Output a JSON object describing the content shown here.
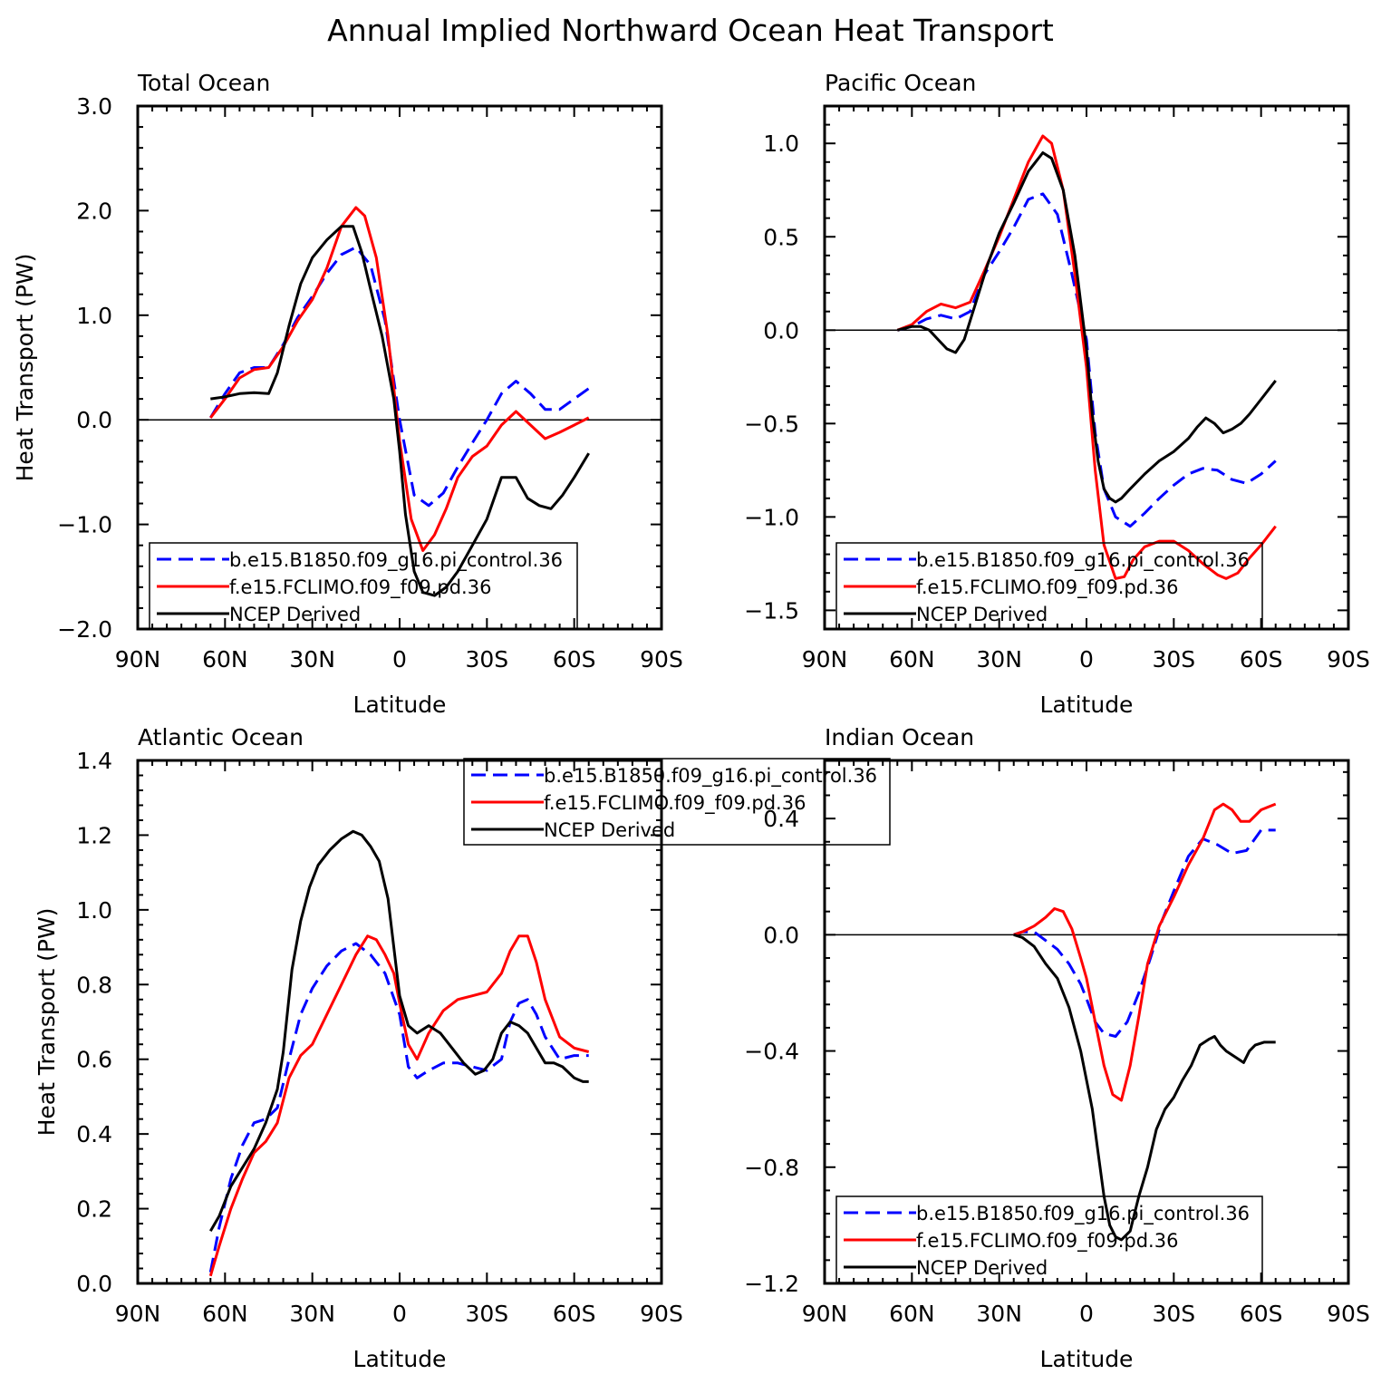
{
  "figure_title": "Annual Implied Northward Ocean Heat Transport",
  "colors": {
    "model_b": "#0000ff",
    "model_f": "#ff0000",
    "ncep": "#000000"
  },
  "chart_data": [
    {
      "type": "line",
      "title": "Total Ocean",
      "xlabel": "Latitude",
      "ylabel": "Heat Transport (PW)",
      "xlim": [
        -90,
        90
      ],
      "ylim": [
        -2.0,
        3.0
      ],
      "xticks": [
        -90,
        -60,
        -30,
        0,
        30,
        60,
        90
      ],
      "xticklabels": [
        "90N",
        "60N",
        "30N",
        "0",
        "30S",
        "60S",
        "90S"
      ],
      "yticks": [
        -2.0,
        -1.0,
        0.0,
        1.0,
        2.0,
        3.0
      ],
      "yticklabels": [
        "−2.0",
        "−1.0",
        "0.0",
        "1.0",
        "2.0",
        "3.0"
      ],
      "zero_line": true,
      "legend_position": "bottom-left",
      "series": [
        {
          "name": "b.e15.B1850.f09_g16.pi_control.36",
          "style": "dashed",
          "color": "#0000ff",
          "x": [
            -65,
            -60,
            -55,
            -50,
            -45,
            -40,
            -35,
            -30,
            -25,
            -20,
            -15,
            -10,
            -5,
            0,
            5,
            10,
            15,
            20,
            25,
            30,
            35,
            40,
            45,
            50,
            55,
            60,
            65
          ],
          "y": [
            0.02,
            0.25,
            0.45,
            0.5,
            0.5,
            0.72,
            0.98,
            1.18,
            1.4,
            1.58,
            1.65,
            1.48,
            0.95,
            0.0,
            -0.72,
            -0.82,
            -0.7,
            -0.45,
            -0.22,
            0.0,
            0.25,
            0.37,
            0.25,
            0.1,
            0.1,
            0.2,
            0.3
          ]
        },
        {
          "name": "f.e15.FCLIMO.f09_f09.pd.36",
          "style": "solid",
          "color": "#ff0000",
          "x": [
            -65,
            -60,
            -55,
            -50,
            -45,
            -40,
            -35,
            -30,
            -25,
            -20,
            -15,
            -12,
            -8,
            -4,
            0,
            4,
            8,
            12,
            16,
            20,
            25,
            30,
            35,
            40,
            45,
            50,
            55,
            60,
            65
          ],
          "y": [
            0.02,
            0.2,
            0.4,
            0.48,
            0.5,
            0.7,
            0.95,
            1.15,
            1.45,
            1.85,
            2.03,
            1.95,
            1.55,
            0.8,
            -0.2,
            -0.95,
            -1.25,
            -1.1,
            -0.85,
            -0.55,
            -0.35,
            -0.25,
            -0.05,
            0.08,
            -0.05,
            -0.18,
            -0.12,
            -0.05,
            0.02
          ]
        },
        {
          "name": "NCEP Derived",
          "style": "solid",
          "color": "#000000",
          "x": [
            -65,
            -60,
            -55,
            -50,
            -45,
            -42,
            -38,
            -34,
            -30,
            -25,
            -20,
            -16,
            -13,
            -10,
            -6,
            -2,
            0,
            2,
            5,
            8,
            12,
            16,
            20,
            25,
            30,
            35,
            40,
            44,
            48,
            52,
            56,
            60,
            65
          ],
          "y": [
            0.2,
            0.22,
            0.25,
            0.26,
            0.25,
            0.45,
            0.9,
            1.3,
            1.55,
            1.72,
            1.85,
            1.85,
            1.6,
            1.25,
            0.8,
            0.2,
            -0.3,
            -0.9,
            -1.45,
            -1.65,
            -1.68,
            -1.6,
            -1.45,
            -1.2,
            -0.95,
            -0.55,
            -0.55,
            -0.75,
            -0.82,
            -0.85,
            -0.72,
            -0.55,
            -0.32
          ]
        }
      ]
    },
    {
      "type": "line",
      "title": "Pacific Ocean",
      "xlabel": "Latitude",
      "ylabel": "",
      "xlim": [
        -90,
        90
      ],
      "ylim": [
        -1.6,
        1.2
      ],
      "xticks": [
        -90,
        -60,
        -30,
        0,
        30,
        60,
        90
      ],
      "xticklabels": [
        "90N",
        "60N",
        "30N",
        "0",
        "30S",
        "60S",
        "90S"
      ],
      "yticks": [
        -1.5,
        -1.0,
        -0.5,
        0.0,
        0.5,
        1.0
      ],
      "yticklabels": [
        "−1.5",
        "−1.0",
        "−0.5",
        "0.0",
        "0.5",
        "1.0"
      ],
      "zero_line": true,
      "legend_position": "bottom-left",
      "series": [
        {
          "name": "b.e15.B1850.f09_g16.pi_control.36",
          "style": "dashed",
          "color": "#0000ff",
          "x": [
            -65,
            -60,
            -55,
            -50,
            -45,
            -40,
            -35,
            -30,
            -25,
            -20,
            -15,
            -10,
            -5,
            0,
            3,
            6,
            10,
            15,
            20,
            25,
            30,
            35,
            40,
            45,
            50,
            55,
            60,
            65
          ],
          "y": [
            0.0,
            0.02,
            0.06,
            0.08,
            0.06,
            0.1,
            0.3,
            0.42,
            0.55,
            0.7,
            0.73,
            0.62,
            0.3,
            -0.05,
            -0.55,
            -0.85,
            -1.0,
            -1.05,
            -0.98,
            -0.9,
            -0.83,
            -0.77,
            -0.74,
            -0.75,
            -0.8,
            -0.82,
            -0.77,
            -0.7
          ]
        },
        {
          "name": "f.e15.FCLIMO.f09_f09.pd.36",
          "style": "solid",
          "color": "#ff0000",
          "x": [
            -65,
            -60,
            -55,
            -50,
            -45,
            -40,
            -35,
            -30,
            -25,
            -20,
            -15,
            -12,
            -8,
            -4,
            0,
            3,
            6,
            10,
            13,
            16,
            20,
            25,
            30,
            35,
            40,
            45,
            48,
            52,
            56,
            60,
            65
          ],
          "y": [
            0.0,
            0.03,
            0.1,
            0.14,
            0.12,
            0.15,
            0.32,
            0.5,
            0.7,
            0.9,
            1.04,
            1.0,
            0.75,
            0.3,
            -0.2,
            -0.75,
            -1.15,
            -1.33,
            -1.32,
            -1.23,
            -1.16,
            -1.13,
            -1.13,
            -1.18,
            -1.25,
            -1.31,
            -1.33,
            -1.3,
            -1.22,
            -1.15,
            -1.05
          ]
        },
        {
          "name": "NCEP Derived",
          "style": "solid",
          "color": "#000000",
          "x": [
            -65,
            -60,
            -57,
            -54,
            -51,
            -48,
            -45,
            -42,
            -38,
            -34,
            -30,
            -25,
            -20,
            -15,
            -12,
            -8,
            -4,
            0,
            2,
            4,
            6,
            8,
            10,
            12,
            15,
            20,
            25,
            30,
            35,
            38,
            41,
            44,
            47,
            50,
            53,
            56,
            60,
            65
          ],
          "y": [
            0.0,
            0.02,
            0.02,
            0.0,
            -0.05,
            -0.1,
            -0.12,
            -0.05,
            0.15,
            0.35,
            0.52,
            0.68,
            0.85,
            0.95,
            0.92,
            0.75,
            0.4,
            -0.1,
            -0.45,
            -0.7,
            -0.85,
            -0.9,
            -0.92,
            -0.9,
            -0.85,
            -0.77,
            -0.7,
            -0.65,
            -0.58,
            -0.52,
            -0.47,
            -0.5,
            -0.55,
            -0.53,
            -0.5,
            -0.45,
            -0.37,
            -0.27
          ]
        }
      ]
    },
    {
      "type": "line",
      "title": "Atlantic Ocean",
      "xlabel": "Latitude",
      "ylabel": "Heat Transport (PW)",
      "xlim": [
        -90,
        90
      ],
      "ylim": [
        0.0,
        1.4
      ],
      "xticks": [
        -90,
        -60,
        -30,
        0,
        30,
        60,
        90
      ],
      "xticklabels": [
        "90N",
        "60N",
        "30N",
        "0",
        "30S",
        "60S",
        "90S"
      ],
      "yticks": [
        0.0,
        0.2,
        0.4,
        0.6,
        0.8,
        1.0,
        1.2,
        1.4
      ],
      "yticklabels": [
        "0.0",
        "0.2",
        "0.4",
        "0.6",
        "0.8",
        "1.0",
        "1.2",
        "1.4"
      ],
      "zero_line": false,
      "legend_position": "top-center",
      "series": [
        {
          "name": "b.e15.B1850.f09_g16.pi_control.36",
          "style": "dashed",
          "color": "#0000ff",
          "x": [
            -65,
            -62,
            -58,
            -54,
            -50,
            -46,
            -42,
            -38,
            -34,
            -30,
            -25,
            -20,
            -15,
            -10,
            -5,
            0,
            3,
            6,
            10,
            15,
            20,
            25,
            30,
            35,
            38,
            41,
            44,
            47,
            50,
            55,
            60,
            65
          ],
          "y": [
            0.03,
            0.15,
            0.28,
            0.37,
            0.43,
            0.44,
            0.47,
            0.6,
            0.72,
            0.79,
            0.85,
            0.89,
            0.91,
            0.88,
            0.83,
            0.72,
            0.58,
            0.55,
            0.57,
            0.59,
            0.59,
            0.58,
            0.57,
            0.6,
            0.7,
            0.75,
            0.76,
            0.72,
            0.66,
            0.6,
            0.61,
            0.61
          ]
        },
        {
          "name": "f.e15.FCLIMO.f09_f09.pd.36",
          "style": "solid",
          "color": "#ff0000",
          "x": [
            -65,
            -62,
            -58,
            -54,
            -50,
            -46,
            -42,
            -38,
            -34,
            -30,
            -25,
            -20,
            -15,
            -11,
            -8,
            -5,
            -2,
            0,
            3,
            6,
            10,
            15,
            20,
            25,
            30,
            35,
            38,
            41,
            44,
            47,
            50,
            55,
            60,
            65
          ],
          "y": [
            0.02,
            0.1,
            0.2,
            0.28,
            0.35,
            0.38,
            0.43,
            0.55,
            0.61,
            0.64,
            0.72,
            0.8,
            0.88,
            0.93,
            0.92,
            0.88,
            0.83,
            0.75,
            0.64,
            0.6,
            0.67,
            0.73,
            0.76,
            0.77,
            0.78,
            0.83,
            0.89,
            0.93,
            0.93,
            0.86,
            0.76,
            0.66,
            0.63,
            0.62
          ]
        },
        {
          "name": "NCEP Derived",
          "style": "solid",
          "color": "#000000",
          "x": [
            -65,
            -62,
            -58,
            -54,
            -50,
            -46,
            -42,
            -40,
            -37,
            -34,
            -31,
            -28,
            -24,
            -20,
            -16,
            -13,
            -10,
            -7,
            -4,
            0,
            3,
            6,
            10,
            14,
            18,
            22,
            26,
            29,
            32,
            35,
            38,
            41,
            44,
            47,
            50,
            53,
            56,
            60,
            63,
            65
          ],
          "y": [
            0.14,
            0.18,
            0.26,
            0.31,
            0.36,
            0.43,
            0.52,
            0.62,
            0.84,
            0.97,
            1.06,
            1.12,
            1.16,
            1.19,
            1.21,
            1.2,
            1.17,
            1.13,
            1.03,
            0.77,
            0.69,
            0.67,
            0.69,
            0.67,
            0.63,
            0.59,
            0.56,
            0.57,
            0.6,
            0.67,
            0.7,
            0.69,
            0.67,
            0.63,
            0.59,
            0.59,
            0.58,
            0.55,
            0.54,
            0.54
          ]
        }
      ]
    },
    {
      "type": "line",
      "title": "Indian Ocean",
      "xlabel": "Latitude",
      "ylabel": "",
      "xlim": [
        -90,
        90
      ],
      "ylim": [
        -1.2,
        0.6
      ],
      "xticks": [
        -90,
        -60,
        -30,
        0,
        30,
        60,
        90
      ],
      "xticklabels": [
        "90N",
        "60N",
        "30N",
        "0",
        "30S",
        "60S",
        "90S"
      ],
      "yticks": [
        -1.2,
        -0.8,
        -0.4,
        0.0,
        0.4
      ],
      "yticklabels": [
        "−1.2",
        "−0.8",
        "−0.4",
        "0.0",
        "0.4"
      ],
      "zero_line": true,
      "legend_position": "bottom-left",
      "series": [
        {
          "name": "b.e15.B1850.f09_g16.pi_control.36",
          "style": "dashed",
          "color": "#0000ff",
          "x": [
            -25,
            -22,
            -18,
            -14,
            -10,
            -6,
            -2,
            0,
            3,
            6,
            10,
            14,
            18,
            22,
            26,
            30,
            35,
            40,
            45,
            50,
            55,
            60,
            65
          ],
          "y": [
            0.0,
            0.01,
            0.01,
            -0.02,
            -0.05,
            -0.1,
            -0.17,
            -0.22,
            -0.3,
            -0.34,
            -0.35,
            -0.3,
            -0.2,
            -0.08,
            0.05,
            0.15,
            0.27,
            0.33,
            0.31,
            0.28,
            0.29,
            0.36,
            0.36
          ]
        },
        {
          "name": "f.e15.FCLIMO.f09_f09.pd.36",
          "style": "solid",
          "color": "#ff0000",
          "x": [
            -25,
            -22,
            -18,
            -14,
            -11,
            -8,
            -5,
            -2,
            0,
            3,
            6,
            9,
            12,
            15,
            18,
            21,
            25,
            30,
            35,
            40,
            44,
            47,
            50,
            53,
            56,
            60,
            65
          ],
          "y": [
            0.0,
            0.01,
            0.03,
            0.06,
            0.09,
            0.08,
            0.02,
            -0.08,
            -0.15,
            -0.3,
            -0.45,
            -0.55,
            -0.57,
            -0.45,
            -0.28,
            -0.1,
            0.03,
            0.13,
            0.24,
            0.33,
            0.43,
            0.45,
            0.43,
            0.39,
            0.39,
            0.43,
            0.45
          ]
        },
        {
          "name": "NCEP Derived",
          "style": "solid",
          "color": "#000000",
          "x": [
            -25,
            -22,
            -18,
            -14,
            -10,
            -6,
            -2,
            0,
            2,
            4,
            6,
            8,
            10,
            12,
            15,
            18,
            21,
            24,
            27,
            30,
            33,
            36,
            39,
            42,
            44,
            46,
            48,
            51,
            54,
            56,
            58,
            61,
            65
          ],
          "y": [
            0.0,
            -0.01,
            -0.04,
            -0.1,
            -0.15,
            -0.25,
            -0.4,
            -0.5,
            -0.6,
            -0.75,
            -0.9,
            -1.0,
            -1.04,
            -1.05,
            -1.02,
            -0.9,
            -0.8,
            -0.67,
            -0.6,
            -0.56,
            -0.5,
            -0.45,
            -0.38,
            -0.36,
            -0.35,
            -0.38,
            -0.4,
            -0.42,
            -0.44,
            -0.4,
            -0.38,
            -0.37,
            -0.37
          ]
        }
      ]
    }
  ]
}
